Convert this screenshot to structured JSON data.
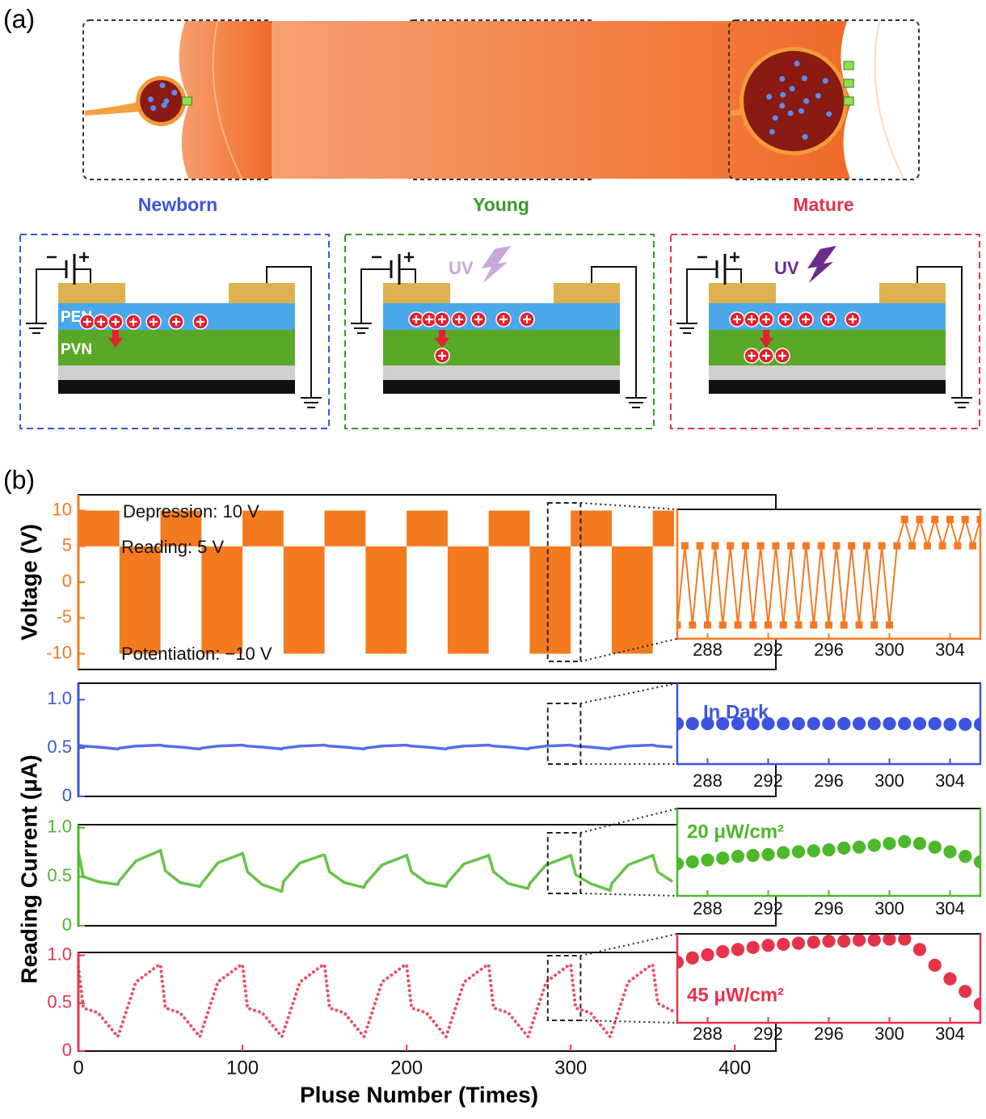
{
  "panel_a": {
    "label": "(a)",
    "stages": [
      {
        "name": "Newborn",
        "color": "#3b55e0"
      },
      {
        "name": "Young",
        "color": "#3a9a2a"
      },
      {
        "name": "Mature",
        "color": "#e6334a"
      }
    ],
    "layers": [
      "PEN",
      "PVN"
    ],
    "uv": [
      {
        "text": "UV",
        "color": "#c8a8d8"
      },
      {
        "text": "UV",
        "color": "#6a2c8c"
      }
    ]
  },
  "panel_b": {
    "label": "(b)",
    "current_ylabel": "Reading Current (μA)"
  },
  "chart_data": [
    {
      "type": "block",
      "color": "#f47a20",
      "ylabel": "Voltage (V)",
      "xlim": [
        0,
        425
      ],
      "ylim": [
        -12.2,
        12.2
      ],
      "yticks": [
        -10,
        -5,
        0,
        5,
        10
      ],
      "annotations": [
        "Depression:  10 V",
        "Reading:  5 V",
        "Potentiation:  −10 V"
      ],
      "blocks": [
        {
          "start": 0,
          "end": 25,
          "low": 5,
          "high": 10
        },
        {
          "start": 25,
          "end": 50,
          "low": -10,
          "high": 5
        },
        {
          "start": 50,
          "end": 75,
          "low": 5,
          "high": 10
        },
        {
          "start": 75,
          "end": 100,
          "low": -10,
          "high": 5
        },
        {
          "start": 100,
          "end": 125,
          "low": 5,
          "high": 10
        },
        {
          "start": 125,
          "end": 150,
          "low": -10,
          "high": 5
        },
        {
          "start": 150,
          "end": 175,
          "low": 5,
          "high": 10
        },
        {
          "start": 175,
          "end": 200,
          "low": -10,
          "high": 5
        },
        {
          "start": 200,
          "end": 225,
          "low": 5,
          "high": 10
        },
        {
          "start": 225,
          "end": 250,
          "low": -10,
          "high": 5
        },
        {
          "start": 250,
          "end": 275,
          "low": 5,
          "high": 10
        },
        {
          "start": 275,
          "end": 300,
          "low": -10,
          "high": 5
        },
        {
          "start": 300,
          "end": 325,
          "low": 5,
          "high": 10
        },
        {
          "start": 325,
          "end": 350,
          "low": -10,
          "high": 5
        },
        {
          "start": 350,
          "end": 363,
          "low": 5,
          "high": 10
        }
      ],
      "inset": {
        "type": "scatter",
        "marker": "square",
        "line": true,
        "xlim": [
          286,
          306
        ],
        "ylim": [
          -12.6,
          11.9
        ],
        "xticks": [
          288,
          292,
          296,
          300,
          304
        ],
        "x": [
          286,
          286.5,
          287,
          287.5,
          288,
          288.5,
          289,
          289.5,
          290,
          290.5,
          291,
          291.5,
          292,
          292.5,
          293,
          293.5,
          294,
          294.5,
          295,
          295.5,
          296,
          296.5,
          297,
          297.5,
          298,
          298.5,
          299,
          299.5,
          300,
          300.5,
          301,
          301.5,
          302,
          302.5,
          303,
          303.5,
          304,
          304.5,
          305,
          305.5,
          306
        ],
        "values": [
          -10,
          5,
          -10,
          5,
          -10,
          5,
          -10,
          5,
          -10,
          5,
          -10,
          5,
          -10,
          5,
          -10,
          5,
          -10,
          5,
          -10,
          5,
          -10,
          5,
          -10,
          5,
          -10,
          5,
          -10,
          5,
          -10,
          5,
          10,
          5,
          10,
          5,
          10,
          5,
          10,
          5,
          10,
          5,
          10
        ]
      }
    },
    {
      "type": "line",
      "color": "#3b55e0",
      "style": "solid",
      "xlim": [
        0,
        425
      ],
      "ylim": [
        0,
        1.17
      ],
      "yticks": [
        0,
        0.5,
        {
          "value": 1,
          "label": "1.0"
        }
      ],
      "x": [
        0,
        3,
        12,
        24,
        25,
        35,
        49,
        50,
        53,
        62,
        74,
        75,
        85,
        99,
        100,
        103,
        112,
        124,
        125,
        135,
        149,
        150,
        153,
        162,
        174,
        175,
        185,
        199,
        200,
        203,
        212,
        224,
        225,
        235,
        249,
        250,
        253,
        262,
        274,
        275,
        285,
        299,
        300,
        303,
        312,
        324,
        325,
        335,
        349,
        350,
        353,
        362
      ],
      "values": [
        0.53,
        0.52,
        0.51,
        0.49,
        0.5,
        0.52,
        0.53,
        0.53,
        0.52,
        0.51,
        0.49,
        0.5,
        0.52,
        0.53,
        0.53,
        0.52,
        0.51,
        0.49,
        0.5,
        0.52,
        0.53,
        0.53,
        0.52,
        0.51,
        0.49,
        0.5,
        0.52,
        0.53,
        0.53,
        0.52,
        0.51,
        0.49,
        0.5,
        0.52,
        0.53,
        0.53,
        0.52,
        0.51,
        0.49,
        0.5,
        0.52,
        0.53,
        0.53,
        0.52,
        0.51,
        0.49,
        0.5,
        0.52,
        0.53,
        0.53,
        0.52,
        0.51
      ],
      "inset": {
        "type": "scatter",
        "marker": "circle",
        "line": false,
        "annotation": "In Dark",
        "xlim": [
          286,
          306
        ],
        "ylim": [
          0,
          1.1
        ],
        "xticks": [
          288,
          292,
          296,
          300,
          304
        ],
        "x": [
          286,
          287,
          288,
          289,
          290,
          291,
          292,
          293,
          294,
          295,
          296,
          297,
          298,
          299,
          300,
          301,
          302,
          303,
          304,
          305,
          306
        ],
        "values": [
          0.55,
          0.55,
          0.55,
          0.55,
          0.55,
          0.55,
          0.55,
          0.55,
          0.55,
          0.55,
          0.55,
          0.55,
          0.55,
          0.55,
          0.55,
          0.55,
          0.55,
          0.55,
          0.54,
          0.54,
          0.54
        ]
      }
    },
    {
      "type": "line",
      "color": "#4cb82a",
      "style": "solid",
      "xlim": [
        0,
        425
      ],
      "ylim": [
        0,
        1.03
      ],
      "yticks": [
        0,
        0.5,
        {
          "value": 1,
          "label": "1.0"
        }
      ],
      "x": [
        0,
        3,
        12,
        24,
        25,
        35,
        49,
        50,
        53,
        62,
        74,
        75,
        85,
        99,
        100,
        103,
        112,
        124,
        125,
        135,
        149,
        150,
        153,
        162,
        174,
        175,
        185,
        199,
        200,
        203,
        212,
        224,
        225,
        235,
        249,
        250,
        253,
        262,
        274,
        275,
        285,
        299,
        300,
        303,
        312,
        324,
        325,
        335,
        349,
        350,
        353,
        362
      ],
      "values": [
        0.75,
        0.5,
        0.45,
        0.42,
        0.46,
        0.66,
        0.76,
        0.77,
        0.56,
        0.44,
        0.4,
        0.43,
        0.64,
        0.73,
        0.74,
        0.55,
        0.42,
        0.35,
        0.45,
        0.64,
        0.72,
        0.72,
        0.55,
        0.44,
        0.39,
        0.43,
        0.62,
        0.71,
        0.72,
        0.55,
        0.44,
        0.4,
        0.44,
        0.63,
        0.71,
        0.72,
        0.55,
        0.43,
        0.38,
        0.43,
        0.62,
        0.71,
        0.72,
        0.52,
        0.43,
        0.36,
        0.43,
        0.62,
        0.71,
        0.72,
        0.55,
        0.45
      ],
      "inset": {
        "type": "scatter",
        "marker": "circle",
        "line": false,
        "annotation": "20 μW/cm²",
        "xlim": [
          286,
          306
        ],
        "ylim": [
          0.25,
          1.2
        ],
        "xticks": [
          288,
          292,
          296,
          300,
          304
        ],
        "x": [
          286,
          287,
          288,
          289,
          290,
          291,
          292,
          293,
          294,
          295,
          296,
          297,
          298,
          299,
          300,
          301,
          302,
          303,
          304,
          305,
          306
        ],
        "values": [
          0.6,
          0.62,
          0.64,
          0.66,
          0.68,
          0.69,
          0.7,
          0.72,
          0.73,
          0.74,
          0.75,
          0.77,
          0.78,
          0.8,
          0.82,
          0.84,
          0.82,
          0.78,
          0.73,
          0.68,
          0.62
        ]
      }
    },
    {
      "type": "line",
      "color": "#e6334a",
      "style": "dotted",
      "xlabel": "Pluse Number (Times)",
      "xlim": [
        0,
        425
      ],
      "ylim": [
        0,
        1.03
      ],
      "yticks": [
        0,
        0.5,
        {
          "value": 1,
          "label": "1.0"
        }
      ],
      "xticks": [
        0,
        100,
        200,
        300,
        400
      ],
      "x": [
        0,
        3,
        12,
        24,
        25,
        35,
        49,
        50,
        53,
        62,
        74,
        75,
        85,
        99,
        100,
        103,
        112,
        124,
        125,
        135,
        149,
        150,
        153,
        162,
        174,
        175,
        185,
        199,
        200,
        203,
        212,
        224,
        225,
        235,
        249,
        250,
        253,
        262,
        274,
        275,
        285,
        299,
        300,
        303,
        312,
        324,
        325,
        335,
        349,
        350,
        353,
        362
      ],
      "values": [
        0.88,
        0.45,
        0.4,
        0.15,
        0.2,
        0.72,
        0.9,
        0.9,
        0.45,
        0.4,
        0.15,
        0.2,
        0.72,
        0.9,
        0.9,
        0.45,
        0.4,
        0.15,
        0.2,
        0.72,
        0.9,
        0.9,
        0.45,
        0.4,
        0.15,
        0.2,
        0.72,
        0.9,
        0.9,
        0.45,
        0.4,
        0.15,
        0.2,
        0.72,
        0.9,
        0.9,
        0.45,
        0.4,
        0.15,
        0.2,
        0.72,
        0.9,
        0.9,
        0.45,
        0.4,
        0.15,
        0.2,
        0.72,
        0.9,
        0.9,
        0.5,
        0.42
      ],
      "inset": {
        "type": "scatter",
        "marker": "circle",
        "line": false,
        "annotation": "45 μW/cm²",
        "xlim": [
          286,
          306
        ],
        "ylim": [
          0.3,
          1.15
        ],
        "xticks": [
          288,
          292,
          296,
          300,
          304
        ],
        "x": [
          286,
          287,
          288,
          289,
          290,
          291,
          292,
          293,
          294,
          295,
          296,
          297,
          298,
          299,
          300,
          301,
          302,
          303,
          304,
          305,
          306
        ],
        "values": [
          0.88,
          0.92,
          0.95,
          0.98,
          1.0,
          1.02,
          1.04,
          1.05,
          1.06,
          1.07,
          1.08,
          1.08,
          1.09,
          1.09,
          1.1,
          1.1,
          1.0,
          0.85,
          0.72,
          0.6,
          0.48
        ]
      }
    }
  ]
}
